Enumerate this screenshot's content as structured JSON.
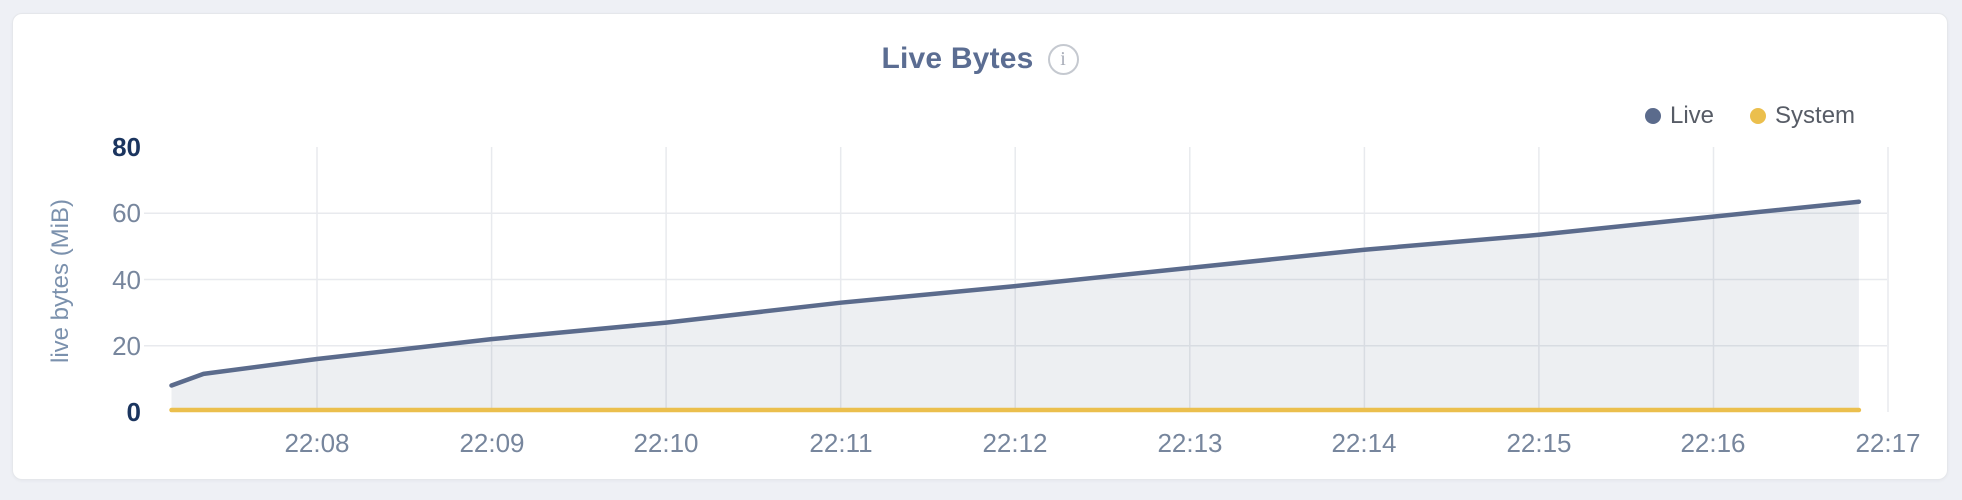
{
  "chart_data": {
    "type": "area",
    "title": "Live Bytes",
    "info_icon_glyph": "i",
    "ylabel": "live bytes (MiB)",
    "ylim": [
      0,
      80
    ],
    "yticks": [
      0,
      20,
      40,
      60,
      80
    ],
    "ytick_emphasized": [
      0,
      80
    ],
    "xticks": [
      "22:08",
      "22:09",
      "22:10",
      "22:11",
      "22:12",
      "22:13",
      "22:14",
      "22:15",
      "22:16",
      "22:17"
    ],
    "grid": true,
    "legend_position": "top-right",
    "colors": {
      "grid": "#e8eaee",
      "live_line": "#5b6b8c",
      "live_fill": "rgba(91,107,140,0.11)",
      "system_line": "#ebbf4d",
      "title": "#5b6d92",
      "tick_label": "#77869d",
      "tick_label_extreme": "#1b355f"
    },
    "series": [
      {
        "name": "Live",
        "color": "#5b6b8c",
        "fill": true,
        "points": [
          {
            "t": "22:07:10",
            "v": 8
          },
          {
            "t": "22:07:21",
            "v": 11.5
          },
          {
            "t": "22:08:00",
            "v": 16
          },
          {
            "t": "22:09:00",
            "v": 22
          },
          {
            "t": "22:10:00",
            "v": 27
          },
          {
            "t": "22:11:00",
            "v": 33
          },
          {
            "t": "22:12:00",
            "v": 38
          },
          {
            "t": "22:13:00",
            "v": 43.5
          },
          {
            "t": "22:14:00",
            "v": 49
          },
          {
            "t": "22:15:00",
            "v": 53.5
          },
          {
            "t": "22:16:00",
            "v": 59
          },
          {
            "t": "22:16:50",
            "v": 63.5
          }
        ]
      },
      {
        "name": "System",
        "color": "#ebbf4d",
        "fill": false,
        "points": [
          {
            "t": "22:07:10",
            "v": 0.6
          },
          {
            "t": "22:16:50",
            "v": 0.6
          }
        ]
      }
    ]
  }
}
